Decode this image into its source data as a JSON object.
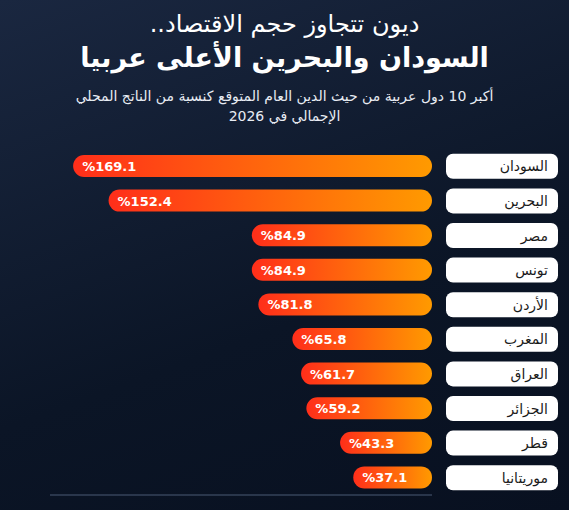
{
  "chart_data": {
    "type": "bar",
    "title": "ديون تتجاوز حجم الاقتصاد..",
    "subtitle": "السودان والبحرين الأعلى عربيا",
    "annotations": [
      "أكبر 10 دول عربية من حيث الدين العام المتوقع كنسبة من الناتج المحلي الإجمالي في 2026"
    ],
    "categories": [
      "السودان",
      "البحرين",
      "مصر",
      "تونس",
      "الأردن",
      "المغرب",
      "العراق",
      "الجزائر",
      "قطر",
      "موريتانيا"
    ],
    "values": [
      169.1,
      152.4,
      84.9,
      84.9,
      81.8,
      65.8,
      61.7,
      59.2,
      43.3,
      37.1
    ],
    "value_labels": [
      "%169.1",
      "%152.4",
      "%84.9",
      "%84.9",
      "%81.8",
      "%65.8",
      "%61.7",
      "%59.2",
      "%43.3",
      "%37.1"
    ],
    "color": "#ff2e1a",
    "orientation": "horizontal",
    "data_labels": true,
    "tick_labels": "y",
    "grid": false,
    "xlim": [
      0,
      180
    ]
  }
}
